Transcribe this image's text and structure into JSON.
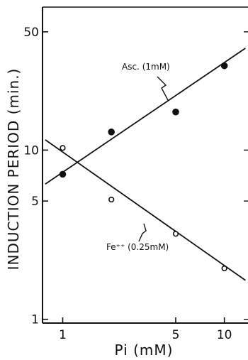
{
  "chart_data": {
    "type": "scatter",
    "title": "",
    "xlabel": "Pi (mM)",
    "ylabel": "INDUCTION PERIOD (min.)",
    "x_scale": "log",
    "y_scale": "log",
    "xlim": [
      0.75,
      14
    ],
    "ylim": [
      0.95,
      70
    ],
    "x_ticks": [
      1,
      5,
      10
    ],
    "x_tick_labels": [
      "1",
      "5",
      "10"
    ],
    "y_ticks": [
      1,
      5,
      10,
      50
    ],
    "y_tick_labels": [
      "1",
      "5",
      "10",
      "50"
    ],
    "grid": false,
    "series": [
      {
        "name": "Asc. (1mM)",
        "marker": "filled-circle",
        "color": "#111111",
        "x": [
          1,
          2,
          5,
          10
        ],
        "y": [
          7.2,
          12.8,
          16.8,
          31.5
        ],
        "fit_line": {
          "x": [
            0.78,
            13.5
          ],
          "y": [
            6.3,
            40
          ]
        }
      },
      {
        "name": "Fe⁺⁺ (0.25mM)",
        "marker": "open-circle",
        "color": "#111111",
        "x": [
          1,
          2,
          5,
          10
        ],
        "y": [
          10.3,
          5.1,
          3.2,
          2.0
        ],
        "fit_line": {
          "x": [
            0.78,
            13.5
          ],
          "y": [
            11.5,
            1.7
          ]
        }
      }
    ]
  }
}
